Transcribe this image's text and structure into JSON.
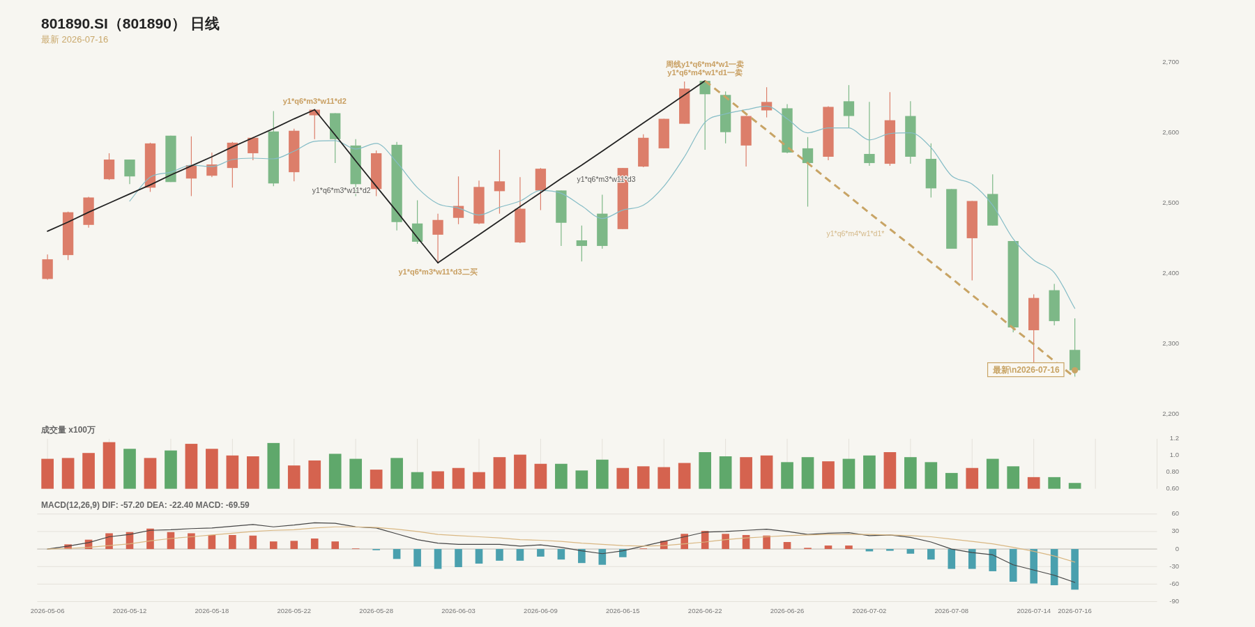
{
  "chart_data": [
    {
      "type": "candlestick",
      "title": "801890.SI（801890） 日线",
      "subtitle": "最新 2026-07-16",
      "categories": [
        null,
        null,
        null,
        null,
        null,
        null,
        null,
        null,
        null,
        null,
        null,
        null,
        null,
        null,
        null,
        null,
        null,
        null,
        null,
        null,
        null,
        null,
        null,
        null,
        null,
        null,
        null,
        null,
        null,
        null,
        null,
        null,
        null,
        null,
        null,
        null,
        null,
        null,
        null,
        null,
        null,
        null,
        null,
        null,
        null,
        null,
        null,
        null,
        null,
        null,
        null,
        null,
        null,
        null,
        null
      ],
      "ohlc": [
        [
          2392,
          2427,
          2391,
          2420
        ],
        [
          2426,
          2488,
          2419,
          2487
        ],
        [
          2469,
          2509,
          2465,
          2508
        ],
        [
          2534,
          2571,
          2533,
          2562
        ],
        [
          2562,
          2562,
          2527,
          2538
        ],
        [
          2522,
          2586,
          2516,
          2585
        ],
        [
          2596,
          2596,
          2530,
          2530
        ],
        [
          2535,
          2595,
          2510,
          2554
        ],
        [
          2539,
          2572,
          2537,
          2555
        ],
        [
          2550,
          2587,
          2522,
          2586
        ],
        [
          2571,
          2594,
          2561,
          2593
        ],
        [
          2602,
          2631,
          2524,
          2528
        ],
        [
          2544,
          2606,
          2531,
          2603
        ],
        [
          2625,
          2633,
          2591,
          2633
        ],
        [
          2628,
          2628,
          2557,
          2591
        ],
        [
          2582,
          2591,
          2510,
          2527
        ],
        [
          2520,
          2575,
          2510,
          2571
        ],
        [
          2583,
          2587,
          2461,
          2473
        ],
        [
          2471,
          2504,
          2442,
          2445
        ],
        [
          2455,
          2485,
          2415,
          2476
        ],
        [
          2479,
          2538,
          2470,
          2496
        ],
        [
          2471,
          2532,
          2470,
          2523
        ],
        [
          2517,
          2576,
          2485,
          2531
        ],
        [
          2444,
          2537,
          2443,
          2492
        ],
        [
          2518,
          2550,
          2490,
          2549
        ],
        [
          2518,
          2518,
          2439,
          2472
        ],
        [
          2447,
          2468,
          2417,
          2439
        ],
        [
          2485,
          2512,
          2435,
          2439
        ],
        [
          2463,
          2550,
          2463,
          2550
        ],
        [
          2552,
          2598,
          2551,
          2593
        ],
        [
          2578,
          2620,
          2578,
          2620
        ],
        [
          2613,
          2673,
          2613,
          2663
        ],
        [
          2674,
          2674,
          2576,
          2655
        ],
        [
          2654,
          2659,
          2585,
          2601
        ],
        [
          2582,
          2624,
          2552,
          2624
        ],
        [
          2632,
          2665,
          2622,
          2644
        ],
        [
          2635,
          2641,
          2571,
          2572
        ],
        [
          2578,
          2594,
          2495,
          2557
        ],
        [
          2566,
          2638,
          2561,
          2637
        ],
        [
          2645,
          2668,
          2607,
          2624
        ],
        [
          2570,
          2644,
          2553,
          2557
        ],
        [
          2556,
          2658,
          2553,
          2618
        ],
        [
          2624,
          2645,
          2556,
          2566
        ],
        [
          2563,
          2585,
          2508,
          2521
        ],
        [
          2520,
          2520,
          2435,
          2435
        ],
        [
          2450,
          2503,
          2390,
          2503
        ],
        [
          2513,
          2541,
          2468,
          2468
        ],
        [
          2446,
          2446,
          2316,
          2323
        ],
        [
          2319,
          2370,
          2272,
          2365
        ],
        [
          2376,
          2385,
          2326,
          2332
        ],
        [
          2291,
          2336,
          2253,
          2262
        ],
        null,
        null,
        null,
        null
      ],
      "colors": [
        "#dc7e6a",
        "#dc7e6a",
        "#dc7e6a",
        "#dc7e6a",
        "#7db887",
        "#dc7e6a",
        "#7db887",
        "#dc7e6a",
        "#dc7e6a",
        "#dc7e6a",
        "#dc7e6a",
        "#7db887",
        "#dc7e6a",
        "#dc7e6a",
        "#7db887",
        "#7db887",
        "#dc7e6a",
        "#7db887",
        "#7db887",
        "#dc7e6a",
        "#dc7e6a",
        "#dc7e6a",
        "#dc7e6a",
        "#dc7e6a",
        "#dc7e6a",
        "#7db887",
        "#7db887",
        "#7db887",
        "#dc7e6a",
        "#dc7e6a",
        "#dc7e6a",
        "#dc7e6a",
        "#7db887",
        "#7db887",
        "#dc7e6a",
        "#dc7e6a",
        "#7db887",
        "#7db887",
        "#dc7e6a",
        "#7db887",
        "#7db887",
        "#dc7e6a",
        "#7db887",
        "#7db887",
        "#7db887",
        "#dc7e6a",
        "#7db887",
        "#7db887",
        "#dc7e6a",
        "#7db887",
        "#7db887",
        null,
        null,
        null,
        null
      ],
      "series": [
        {
          "type": "line",
          "color": "#84bcc6",
          "values": [
            null,
            null,
            null,
            null,
            2503,
            2537,
            2544,
            2554,
            2552,
            2562,
            2564,
            2563,
            2574,
            2588,
            2589,
            2577,
            2585,
            2558,
            2522,
            2499,
            2493,
            2483,
            2494,
            2503,
            2518,
            2514,
            2496,
            2478,
            2490,
            2497,
            2524,
            2566,
            2615,
            2627,
            2633,
            2638,
            2620,
            2600,
            2607,
            2607,
            2590,
            2599,
            2600,
            2579,
            2539,
            2527,
            2497,
            2449,
            2419,
            2401,
            2350,
            null,
            null,
            null,
            null
          ]
        },
        {
          "type": "line",
          "color": "#222222",
          "values": [
            2460,
            2473,
            2487,
            2500,
            2513,
            2526,
            2540,
            2553,
            2566,
            2580,
            2593,
            2606,
            2620,
            2633,
            null,
            null,
            null,
            null,
            null,
            null,
            null,
            null,
            null,
            null,
            null,
            null,
            null,
            null,
            null,
            null,
            null,
            null,
            null,
            null,
            null,
            null,
            null,
            null,
            null,
            null,
            null,
            null,
            null,
            null,
            null,
            null,
            null,
            null,
            null,
            null,
            null,
            null,
            null,
            null,
            null
          ],
          "value_labels": [
            null,
            null,
            null,
            null,
            null,
            null,
            null,
            null,
            null,
            null,
            null,
            null,
            null,
            "y1*q6*m3*w11*d2",
            null,
            null,
            null,
            null,
            null,
            null,
            null,
            null,
            null,
            null,
            null,
            null,
            null,
            null,
            null,
            null,
            null,
            null,
            null,
            null,
            null,
            null,
            null,
            null,
            null,
            null,
            null,
            null,
            null,
            null,
            null,
            null,
            null,
            null,
            null,
            null,
            null,
            null,
            null,
            null,
            null
          ]
        },
        {
          "type": "line",
          "name": "y1*q6*m3*w11*d2",
          "color": "#222222",
          "values": [
            null,
            null,
            null,
            null,
            null,
            null,
            null,
            null,
            null,
            null,
            null,
            null,
            null,
            2633,
            2597,
            2560,
            2524,
            2488,
            2451,
            2415,
            null,
            null,
            null,
            null,
            null,
            null,
            null,
            null,
            null,
            null,
            null,
            null,
            null,
            null,
            null,
            null,
            null,
            null,
            null,
            null,
            null,
            null,
            null,
            null,
            null,
            null,
            null,
            null,
            null,
            null,
            null,
            null,
            null,
            null,
            null
          ],
          "value_labels": [
            null,
            null,
            null,
            null,
            null,
            null,
            null,
            null,
            null,
            null,
            null,
            null,
            null,
            null,
            null,
            null,
            null,
            null,
            null,
            "y1*q6*m3*w11*d3二买",
            null,
            null,
            null,
            null,
            null,
            null,
            null,
            null,
            null,
            null,
            null,
            null,
            null,
            null,
            null,
            null,
            null,
            null,
            null,
            null,
            null,
            null,
            null,
            null,
            null,
            null,
            null,
            null,
            null,
            null,
            null,
            null,
            null,
            null,
            null
          ]
        },
        {
          "type": "line",
          "name": "y1*q6*m3*w11*d3",
          "color": "#222222",
          "values": [
            null,
            null,
            null,
            null,
            null,
            null,
            null,
            null,
            null,
            null,
            null,
            null,
            null,
            null,
            null,
            null,
            null,
            null,
            null,
            2415,
            2435,
            2455,
            2475,
            2495,
            2515,
            2535,
            2554,
            2574,
            2594,
            2614,
            2634,
            2654,
            2674,
            null,
            null,
            null,
            null,
            null,
            null,
            null,
            null,
            null,
            null,
            null,
            null,
            null,
            null,
            null,
            null,
            null,
            null,
            null,
            null,
            null,
            null
          ],
          "value_labels": [
            null,
            null,
            null,
            null,
            null,
            null,
            null,
            null,
            null,
            null,
            null,
            null,
            null,
            null,
            null,
            null,
            null,
            null,
            null,
            null,
            null,
            null,
            null,
            null,
            null,
            null,
            null,
            null,
            null,
            null,
            null,
            null,
            "周线y1*q6*m4*w1一卖\ny1*q6*m4*w1*d1一卖",
            null,
            null,
            null,
            null,
            null,
            null,
            null,
            null,
            null,
            null,
            null,
            null,
            null,
            null,
            null,
            null,
            null,
            null,
            null,
            null,
            null,
            null
          ]
        },
        {
          "type": "line",
          "name": "y1*q6*m4*w1*d1*",
          "color": "#c8a465",
          "line_style": "dashed",
          "values": [
            null,
            null,
            null,
            null,
            null,
            null,
            null,
            null,
            null,
            null,
            null,
            null,
            null,
            null,
            null,
            null,
            null,
            null,
            null,
            null,
            null,
            null,
            null,
            null,
            null,
            null,
            null,
            null,
            null,
            null,
            null,
            null,
            2674,
            2651,
            2627,
            2604,
            2580,
            2557,
            2533,
            2510,
            2486,
            2463,
            2440,
            2416,
            2393,
            2369,
            2346,
            2322,
            2299,
            2275,
            2252,
            null,
            null,
            null,
            null
          ]
        },
        {
          "type": "scatter",
          "color": "#c8a465",
          "values": [
            null,
            null,
            null,
            null,
            null,
            null,
            null,
            null,
            null,
            null,
            null,
            null,
            null,
            null,
            null,
            null,
            null,
            null,
            null,
            null,
            null,
            null,
            null,
            null,
            null,
            null,
            null,
            null,
            null,
            null,
            null,
            null,
            null,
            null,
            null,
            null,
            null,
            null,
            null,
            null,
            null,
            null,
            null,
            null,
            null,
            null,
            null,
            null,
            null,
            null,
            2262,
            null,
            null,
            null,
            null
          ],
          "value_labels": [
            null,
            null,
            null,
            null,
            null,
            null,
            null,
            null,
            null,
            null,
            null,
            null,
            null,
            null,
            null,
            null,
            null,
            null,
            null,
            null,
            null,
            null,
            null,
            null,
            null,
            null,
            null,
            null,
            null,
            null,
            null,
            null,
            null,
            null,
            null,
            null,
            null,
            null,
            null,
            null,
            null,
            null,
            null,
            null,
            null,
            null,
            null,
            null,
            null,
            null,
            "最新\\n2026-07-16",
            null,
            null,
            null,
            null
          ]
        }
      ],
      "ylim": [
        2200,
        2700
      ],
      "yticks": [
        {
          "value": 2200,
          "label": "2,200"
        },
        {
          "value": 2300,
          "label": "2,300"
        },
        {
          "value": 2400,
          "label": "2,400"
        },
        {
          "value": 2500,
          "label": "2,500"
        },
        {
          "value": 2600,
          "label": "2,600"
        },
        {
          "value": 2700,
          "label": "2,700"
        }
      ],
      "tick_labels": "y"
    },
    {
      "type": "bar",
      "title": "成交量 x100万",
      "categories": [
        null,
        null,
        null,
        null,
        null,
        null,
        null,
        null,
        null,
        null,
        null,
        null,
        null,
        null,
        null,
        null,
        null,
        null,
        null,
        null,
        null,
        null,
        null,
        null,
        null,
        null,
        null,
        null,
        null,
        null,
        null,
        null,
        null,
        null,
        null,
        null,
        null,
        null,
        null,
        null,
        null,
        null,
        null,
        null,
        null,
        null,
        null,
        null,
        null,
        null,
        null,
        null,
        null,
        null,
        null
      ],
      "values": [
        0.96,
        0.97,
        1.03,
        1.16,
        1.08,
        0.97,
        1.06,
        1.14,
        1.08,
        1.0,
        0.99,
        1.15,
        0.88,
        0.94,
        1.02,
        0.96,
        0.83,
        0.97,
        0.8,
        0.81,
        0.85,
        0.8,
        0.98,
        1.01,
        0.9,
        0.9,
        0.82,
        0.95,
        0.85,
        0.87,
        0.86,
        0.91,
        1.04,
        0.99,
        0.98,
        1.0,
        0.92,
        0.98,
        0.93,
        0.96,
        1.0,
        1.04,
        0.98,
        0.92,
        0.79,
        0.85,
        0.96,
        0.87,
        0.74,
        0.74,
        0.67,
        null,
        null,
        null,
        null
      ],
      "colors": [
        "#d5634f",
        "#d5634f",
        "#d5634f",
        "#d5634f",
        "#5fa86b",
        "#d5634f",
        "#5fa86b",
        "#d5634f",
        "#d5634f",
        "#d5634f",
        "#d5634f",
        "#5fa86b",
        "#d5634f",
        "#d5634f",
        "#5fa86b",
        "#5fa86b",
        "#d5634f",
        "#5fa86b",
        "#5fa86b",
        "#d5634f",
        "#d5634f",
        "#d5634f",
        "#d5634f",
        "#d5634f",
        "#d5634f",
        "#5fa86b",
        "#5fa86b",
        "#5fa86b",
        "#d5634f",
        "#d5634f",
        "#d5634f",
        "#d5634f",
        "#5fa86b",
        "#5fa86b",
        "#d5634f",
        "#d5634f",
        "#5fa86b",
        "#5fa86b",
        "#d5634f",
        "#5fa86b",
        "#5fa86b",
        "#d5634f",
        "#5fa86b",
        "#5fa86b",
        "#5fa86b",
        "#d5634f",
        "#5fa86b",
        "#5fa86b",
        "#d5634f",
        "#5fa86b",
        "#5fa86b",
        null,
        null,
        null,
        null
      ],
      "ylim": [
        0.6,
        1.2
      ],
      "yticks": [
        {
          "value": 0.6,
          "label": "0.60"
        },
        {
          "value": 0.8,
          "label": "0.80"
        },
        {
          "value": 1.0,
          "label": "1.0"
        },
        1.2
      ],
      "grid": "x",
      "tick_labels": "y"
    },
    {
      "type": "bar",
      "title": "MACD(12,26,9) DIF: -57.20 DEA: -22.40 MACD: -69.59",
      "categories": [
        "2026-05-06",
        null,
        null,
        null,
        "2026-05-12",
        null,
        null,
        null,
        "2026-05-18",
        null,
        null,
        null,
        "2026-05-22",
        null,
        null,
        null,
        "2026-05-28",
        null,
        null,
        null,
        "2026-06-03",
        null,
        null,
        null,
        "2026-06-09",
        null,
        null,
        null,
        "2026-06-15",
        null,
        null,
        null,
        "2026-06-22",
        null,
        null,
        null,
        "2026-06-26",
        null,
        null,
        null,
        "2026-07-02",
        null,
        null,
        null,
        "2026-07-08",
        null,
        null,
        null,
        "2026-07-14",
        null,
        "2026-07-16",
        null,
        null,
        null,
        null
      ],
      "series": [
        {
          "type": "bar",
          "values": [
            0,
            8,
            16,
            27,
            29,
            35,
            29,
            27,
            24,
            24,
            23,
            13,
            14,
            18,
            13,
            1,
            -2,
            -17,
            -30,
            -34,
            -31,
            -25,
            -20,
            -20,
            -13,
            -18,
            -24,
            -27,
            -14,
            1,
            14,
            26,
            31,
            26,
            24,
            23,
            12,
            2,
            6,
            6,
            -4,
            -3,
            -8,
            -18,
            -34,
            -34,
            -38,
            -56,
            -59,
            -62,
            -69.59,
            null,
            null,
            null,
            null
          ],
          "colors": [
            "#d5634f",
            "#d5634f",
            "#d5634f",
            "#d5634f",
            "#d5634f",
            "#d5634f",
            "#d5634f",
            "#d5634f",
            "#d5634f",
            "#d5634f",
            "#d5634f",
            "#d5634f",
            "#d5634f",
            "#d5634f",
            "#d5634f",
            "#d5634f",
            "#4aa0ae",
            "#4aa0ae",
            "#4aa0ae",
            "#4aa0ae",
            "#4aa0ae",
            "#4aa0ae",
            "#4aa0ae",
            "#4aa0ae",
            "#4aa0ae",
            "#4aa0ae",
            "#4aa0ae",
            "#4aa0ae",
            "#4aa0ae",
            "#d5634f",
            "#d5634f",
            "#d5634f",
            "#d5634f",
            "#d5634f",
            "#d5634f",
            "#d5634f",
            "#d5634f",
            "#d5634f",
            "#d5634f",
            "#d5634f",
            "#4aa0ae",
            "#4aa0ae",
            "#4aa0ae",
            "#4aa0ae",
            "#4aa0ae",
            "#4aa0ae",
            "#4aa0ae",
            "#4aa0ae",
            "#4aa0ae",
            "#4aa0ae",
            "#4aa0ae",
            null,
            null,
            null,
            null
          ]
        },
        {
          "type": "line",
          "color": "#454545",
          "values": [
            0,
            5,
            11,
            21,
            25,
            32,
            33,
            35,
            36,
            39,
            42,
            38,
            41,
            45,
            44,
            38,
            36,
            26,
            16,
            10,
            8,
            8,
            8,
            5,
            7,
            3,
            -3,
            -8,
            -3,
            5,
            13,
            21,
            29,
            30,
            32,
            34,
            30,
            25,
            27,
            28,
            23,
            24,
            20,
            12,
            0,
            -6,
            -10,
            -27,
            -36,
            -45,
            -57.2,
            null,
            null,
            null,
            null
          ]
        },
        {
          "type": "line",
          "color": "#d9b782",
          "values": [
            0,
            1,
            3,
            6,
            9,
            14,
            18,
            21,
            24,
            27,
            30,
            32,
            33,
            36,
            38,
            38,
            37,
            34,
            30,
            25,
            23,
            21,
            19,
            16,
            15,
            13,
            10,
            8,
            6,
            5,
            6,
            9,
            12,
            16,
            19,
            21,
            23,
            24,
            25,
            25,
            25,
            24,
            23,
            21,
            17,
            13,
            9,
            3,
            -4,
            -12,
            -22.4,
            null,
            null,
            null,
            null
          ]
        }
      ],
      "ylim": [
        -90,
        60
      ],
      "yticks": [
        -90,
        -60,
        -30,
        0,
        30,
        60
      ],
      "grid": "y"
    }
  ]
}
